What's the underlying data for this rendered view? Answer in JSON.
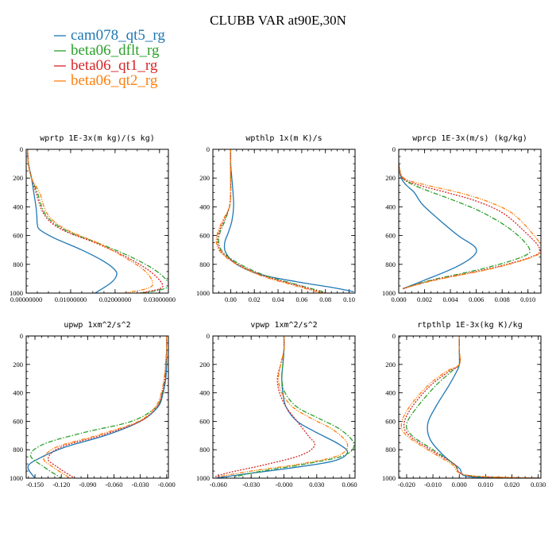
{
  "figure": {
    "title": "CLUBB VAR at90E,30N",
    "legend": [
      {
        "name": "cam078_qt5_rg",
        "color": "#1f77b4",
        "dash": "solid"
      },
      {
        "name": "beta06_dflt_rg",
        "color": "#2ca02c",
        "dash": "dashdot"
      },
      {
        "name": "beta06_qt1_rg",
        "color": "#d62728",
        "dash": "dotted"
      },
      {
        "name": "beta06_qt2_rg",
        "color": "#ff7f0e",
        "dash": "dashdot2"
      }
    ]
  },
  "chart_data": [
    {
      "type": "line",
      "title": "wprtp  1E-3x(m kg)/(s kg)",
      "xlim": [
        0,
        0.032
      ],
      "ylim": [
        1000,
        0
      ],
      "xticks": [
        0,
        0.01,
        0.02,
        0.03
      ],
      "xtick_labels": [
        "0.00000000",
        "0.01000000",
        "0.02000000",
        "0.03000000"
      ],
      "yticks": [
        0,
        200,
        400,
        600,
        800,
        1000
      ],
      "ytick_labels": [
        "0",
        "200",
        "400",
        "600",
        "800",
        "1000"
      ],
      "series": [
        {
          "name": "cam078_qt5_rg",
          "x": [
            0.0003,
            0.0005,
            0.0012,
            0.0017,
            0.0022,
            0.0024,
            0.0025,
            0.0031,
            0.0065,
            0.0125,
            0.0175,
            0.02,
            0.0203,
            0.019,
            0.0155
          ],
          "y": [
            0,
            100,
            200,
            300,
            400,
            470,
            520,
            560,
            620,
            700,
            780,
            840,
            880,
            930,
            1000
          ]
        },
        {
          "name": "beta06_dflt_rg",
          "x": [
            0.0003,
            0.0005,
            0.0012,
            0.0025,
            0.0035,
            0.0045,
            0.0065,
            0.01,
            0.016,
            0.023,
            0.029,
            0.032,
            0.031,
            0.026
          ],
          "y": [
            0,
            100,
            200,
            300,
            400,
            460,
            520,
            580,
            650,
            740,
            840,
            930,
            970,
            1000
          ]
        },
        {
          "name": "beta06_qt1_rg",
          "x": [
            0.0003,
            0.0005,
            0.0012,
            0.0022,
            0.0032,
            0.0042,
            0.006,
            0.0095,
            0.0155,
            0.022,
            0.0275,
            0.0305,
            0.03,
            0.0255
          ],
          "y": [
            0,
            100,
            200,
            300,
            400,
            460,
            520,
            580,
            650,
            740,
            840,
            930,
            970,
            1000
          ]
        },
        {
          "name": "beta06_qt2_rg",
          "x": [
            0.0003,
            0.0005,
            0.0012,
            0.003,
            0.004,
            0.005,
            0.007,
            0.0105,
            0.016,
            0.0215,
            0.0265,
            0.0285,
            0.027,
            0.022
          ],
          "y": [
            0,
            100,
            200,
            300,
            400,
            460,
            520,
            580,
            650,
            740,
            840,
            930,
            970,
            1000
          ]
        }
      ]
    },
    {
      "type": "line",
      "title": "wpthlp  1x(m K)/s",
      "xlim": [
        -0.015,
        0.105
      ],
      "ylim": [
        1000,
        0
      ],
      "xticks": [
        0,
        0.02,
        0.04,
        0.06,
        0.08,
        0.1
      ],
      "xtick_labels": [
        "0.00",
        "0.02",
        "0.04",
        "0.06",
        "0.08",
        "0.10"
      ],
      "yticks": [
        0,
        200,
        400,
        600,
        800,
        1000
      ],
      "ytick_labels": [
        "0",
        "200",
        "400",
        "600",
        "800",
        "1000"
      ],
      "series": [
        {
          "name": "cam078_qt5_rg",
          "x": [
            0,
            0,
            0.001,
            0.002,
            0.0025,
            0.001,
            -0.002,
            -0.005,
            -0.004,
            0.005,
            0.025,
            0.055,
            0.085,
            0.104
          ],
          "y": [
            0,
            100,
            200,
            300,
            400,
            500,
            580,
            650,
            720,
            800,
            870,
            920,
            960,
            990
          ]
        },
        {
          "name": "beta06_dflt_rg",
          "x": [
            0,
            0,
            0,
            0,
            -0.001,
            -0.005,
            -0.009,
            -0.01,
            -0.006,
            0.008,
            0.03,
            0.06,
            0.082
          ],
          "y": [
            0,
            100,
            200,
            300,
            400,
            500,
            580,
            650,
            720,
            800,
            880,
            950,
            1000
          ]
        },
        {
          "name": "beta06_qt1_rg",
          "x": [
            0,
            0,
            0,
            0,
            -0.001,
            -0.006,
            -0.01,
            -0.011,
            -0.007,
            0.006,
            0.028,
            0.058,
            0.08
          ],
          "y": [
            0,
            100,
            200,
            300,
            400,
            500,
            580,
            650,
            720,
            800,
            880,
            950,
            1000
          ]
        },
        {
          "name": "beta06_qt2_rg",
          "x": [
            0,
            0,
            0,
            0,
            -0.001,
            -0.007,
            -0.011,
            -0.012,
            -0.008,
            0.005,
            0.026,
            0.055,
            0.077
          ],
          "y": [
            0,
            100,
            200,
            300,
            400,
            500,
            580,
            650,
            720,
            800,
            880,
            950,
            1000
          ]
        }
      ]
    },
    {
      "type": "line",
      "title": "wprcp  1E-3x(m/s) (kg/kg)",
      "xlim": [
        0,
        0.011
      ],
      "ylim": [
        1000,
        0
      ],
      "xticks": [
        0,
        0.002,
        0.004,
        0.006,
        0.008,
        0.01
      ],
      "xtick_labels": [
        "0.000",
        "0.002",
        "0.004",
        "0.006",
        "0.008",
        "0.010"
      ],
      "yticks": [
        0,
        200,
        400,
        600,
        800,
        1000
      ],
      "ytick_labels": [
        "0",
        "200",
        "400",
        "600",
        "800",
        "1000"
      ],
      "series": [
        {
          "name": "cam078_qt5_rg",
          "x": [
            0,
            0,
            0.0002,
            0.0006,
            0.0012,
            0.0018,
            0.003,
            0.0046,
            0.0059,
            0.0058,
            0.0044,
            0.002,
            0.0003
          ],
          "y": [
            0,
            100,
            200,
            250,
            300,
            380,
            480,
            600,
            680,
            740,
            820,
            910,
            970
          ]
        },
        {
          "name": "beta06_dflt_rg",
          "x": [
            0,
            0,
            0.0003,
            0.0012,
            0.0026,
            0.0044,
            0.0065,
            0.0087,
            0.0101,
            0.0095,
            0.0065,
            0.0025,
            0.0003
          ],
          "y": [
            0,
            100,
            200,
            250,
            300,
            360,
            440,
            560,
            690,
            750,
            830,
            910,
            970
          ]
        },
        {
          "name": "beta06_qt1_rg",
          "x": [
            0,
            0,
            0.0003,
            0.0016,
            0.0037,
            0.006,
            0.008,
            0.0096,
            0.0109,
            0.0102,
            0.007,
            0.0027,
            0.0003
          ],
          "y": [
            0,
            100,
            200,
            250,
            300,
            360,
            440,
            560,
            690,
            750,
            830,
            910,
            970
          ]
        },
        {
          "name": "beta06_qt2_rg",
          "x": [
            0,
            0,
            0.0004,
            0.0022,
            0.0046,
            0.0068,
            0.0087,
            0.0101,
            0.0111,
            0.0103,
            0.0072,
            0.0028,
            0.0003
          ],
          "y": [
            0,
            100,
            200,
            250,
            300,
            360,
            440,
            560,
            690,
            750,
            830,
            910,
            970
          ]
        }
      ]
    },
    {
      "type": "line",
      "title": "upwp  1xm^2/s^2",
      "xlim": [
        -0.16,
        0.002
      ],
      "ylim": [
        1000,
        0
      ],
      "xticks": [
        -0.15,
        -0.12,
        -0.09,
        -0.06,
        -0.03,
        0
      ],
      "xtick_labels": [
        "-0.150",
        "-0.120",
        "-0.090",
        "-0.060",
        "-0.030",
        "-0.000"
      ],
      "yticks": [
        0,
        200,
        400,
        600,
        800,
        1000
      ],
      "ytick_labels": [
        "0",
        "200",
        "400",
        "600",
        "800",
        "1000"
      ],
      "series": [
        {
          "name": "cam078_qt5_rg",
          "x": [
            0,
            0,
            0,
            -0.001,
            -0.004,
            -0.01,
            -0.03,
            -0.07,
            -0.115,
            -0.145,
            -0.158,
            -0.15
          ],
          "y": [
            0,
            100,
            200,
            300,
            400,
            500,
            600,
            700,
            780,
            860,
            920,
            1000
          ]
        },
        {
          "name": "beta06_dflt_rg",
          "x": [
            0,
            0,
            -0.001,
            -0.002,
            -0.005,
            -0.012,
            -0.04,
            -0.095,
            -0.14,
            -0.155,
            -0.14,
            -0.12
          ],
          "y": [
            0,
            100,
            200,
            300,
            400,
            500,
            600,
            680,
            760,
            840,
            920,
            1000
          ]
        },
        {
          "name": "beta06_qt1_rg",
          "x": [
            0,
            0,
            -0.001,
            -0.002,
            -0.005,
            -0.011,
            -0.03,
            -0.075,
            -0.12,
            -0.135,
            -0.125,
            -0.105
          ],
          "y": [
            0,
            100,
            200,
            300,
            400,
            500,
            600,
            700,
            780,
            860,
            920,
            1000
          ]
        },
        {
          "name": "beta06_qt2_rg",
          "x": [
            0,
            0,
            -0.001,
            -0.003,
            -0.006,
            -0.013,
            -0.032,
            -0.08,
            -0.125,
            -0.14,
            -0.13,
            -0.11
          ],
          "y": [
            0,
            100,
            200,
            300,
            400,
            500,
            600,
            700,
            780,
            860,
            920,
            1000
          ]
        }
      ]
    },
    {
      "type": "line",
      "title": "vpwp  1xm^2/s^2",
      "xlim": [
        -0.065,
        0.065
      ],
      "ylim": [
        1000,
        0
      ],
      "xticks": [
        -0.06,
        -0.03,
        0,
        0.03,
        0.06
      ],
      "xtick_labels": [
        "-0.060",
        "-0.030",
        "-0.000",
        "0.030",
        "0.060"
      ],
      "yticks": [
        0,
        200,
        400,
        600,
        800,
        1000
      ],
      "ytick_labels": [
        "0",
        "200",
        "400",
        "600",
        "800",
        "1000"
      ],
      "series": [
        {
          "name": "cam078_qt5_rg",
          "x": [
            0,
            0,
            -0.001,
            -0.002,
            -0.001,
            0.002,
            0.012,
            0.03,
            0.05,
            0.058,
            0.045,
            0.005,
            -0.035,
            -0.062
          ],
          "y": [
            0,
            100,
            200,
            300,
            400,
            500,
            600,
            680,
            760,
            820,
            880,
            930,
            970,
            1000
          ]
        },
        {
          "name": "beta06_dflt_rg",
          "x": [
            0,
            0,
            -0.001,
            -0.002,
            0.001,
            0.012,
            0.032,
            0.052,
            0.064,
            0.055,
            0.02,
            -0.02,
            -0.045
          ],
          "y": [
            0,
            100,
            200,
            300,
            400,
            500,
            580,
            660,
            760,
            840,
            900,
            950,
            990
          ]
        },
        {
          "name": "beta06_qt1_rg",
          "x": [
            0,
            0,
            -0.003,
            -0.006,
            -0.004,
            0.002,
            0.012,
            0.022,
            0.028,
            0.015,
            -0.02,
            -0.05,
            -0.063
          ],
          "y": [
            0,
            100,
            200,
            300,
            400,
            500,
            600,
            700,
            770,
            840,
            910,
            960,
            990
          ]
        },
        {
          "name": "beta06_qt2_rg",
          "x": [
            0,
            0,
            -0.003,
            -0.005,
            -0.002,
            0.008,
            0.025,
            0.045,
            0.058,
            0.05,
            0.015,
            -0.03,
            -0.06
          ],
          "y": [
            0,
            100,
            200,
            300,
            400,
            500,
            580,
            660,
            760,
            840,
            900,
            950,
            990
          ]
        }
      ]
    },
    {
      "type": "line",
      "title": "rtpthlp  1E-3x(kg K)/kg",
      "xlim": [
        -0.023,
        0.031
      ],
      "ylim": [
        1000,
        0
      ],
      "xticks": [
        -0.02,
        -0.01,
        0,
        0.01,
        0.02,
        0.03
      ],
      "xtick_labels": [
        "-0.020",
        "-0.010",
        "0.000",
        "0.010",
        "0.020",
        "0.030"
      ],
      "yticks": [
        0,
        200,
        400,
        600,
        800,
        1000
      ],
      "ytick_labels": [
        "0",
        "200",
        "400",
        "600",
        "800",
        "1000"
      ],
      "series": [
        {
          "name": "cam078_qt5_rg",
          "x": [
            0,
            0,
            0,
            -0.001,
            -0.004,
            -0.009,
            -0.012,
            -0.011,
            -0.006,
            0,
            0.004,
            0.03
          ],
          "y": [
            0,
            100,
            200,
            250,
            350,
            500,
            620,
            730,
            840,
            930,
            990,
            1000
          ]
        },
        {
          "name": "beta06_dflt_rg",
          "x": [
            0,
            0,
            0,
            -0.003,
            -0.009,
            -0.016,
            -0.02,
            -0.018,
            -0.01,
            -0.002,
            0.003,
            0.03
          ],
          "y": [
            0,
            100,
            200,
            250,
            350,
            500,
            620,
            700,
            800,
            900,
            980,
            1000
          ]
        },
        {
          "name": "beta06_qt1_rg",
          "x": [
            0,
            0,
            0,
            -0.004,
            -0.011,
            -0.018,
            -0.021,
            -0.019,
            -0.011,
            -0.002,
            0.003,
            0.03
          ],
          "y": [
            0,
            100,
            200,
            250,
            350,
            500,
            620,
            700,
            800,
            900,
            980,
            1000
          ]
        },
        {
          "name": "beta06_qt2_rg",
          "x": [
            0,
            0,
            0,
            -0.005,
            -0.012,
            -0.019,
            -0.022,
            -0.02,
            -0.012,
            -0.003,
            0.003,
            0.03
          ],
          "y": [
            0,
            100,
            200,
            250,
            350,
            500,
            620,
            700,
            800,
            900,
            980,
            1000
          ]
        }
      ]
    }
  ]
}
